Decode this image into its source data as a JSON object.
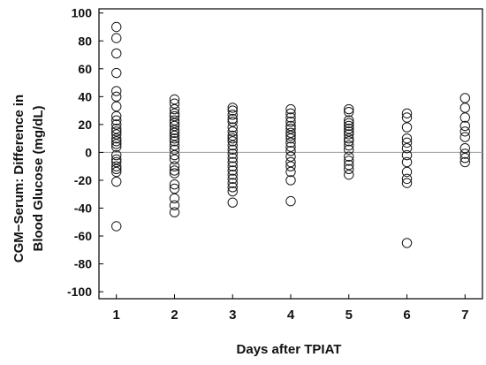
{
  "chart_data": {
    "type": "scatter",
    "xlabel": "Days after TPIAT",
    "ylabel_lines": [
      "CGM−Serum: Difference in",
      "Blood Glucose (mg/dL)"
    ],
    "xlim": [
      0.7,
      7.3
    ],
    "ylim": [
      -105,
      103
    ],
    "x_ticks": [
      1,
      2,
      3,
      4,
      5,
      6,
      7
    ],
    "y_ticks": [
      -100,
      -80,
      -60,
      -40,
      -20,
      0,
      20,
      40,
      60,
      80,
      100
    ],
    "zero_line": true,
    "grid": false,
    "marker": "open-circle",
    "colors": {
      "marker": "#1a1a1a",
      "axis": "#000000",
      "zero_line": "#9a9a9a"
    },
    "points": [
      [
        1,
        90
      ],
      [
        1,
        82
      ],
      [
        1,
        71
      ],
      [
        1,
        57
      ],
      [
        1,
        44
      ],
      [
        1,
        40
      ],
      [
        1,
        33
      ],
      [
        1,
        26
      ],
      [
        1,
        23
      ],
      [
        1,
        20
      ],
      [
        1,
        17
      ],
      [
        1,
        15
      ],
      [
        1,
        13
      ],
      [
        1,
        10
      ],
      [
        1,
        8
      ],
      [
        1,
        6
      ],
      [
        1,
        4
      ],
      [
        1,
        -2
      ],
      [
        1,
        -5
      ],
      [
        1,
        -7
      ],
      [
        1,
        -10
      ],
      [
        1,
        -12
      ],
      [
        1,
        -14
      ],
      [
        1,
        -21
      ],
      [
        1,
        -53
      ],
      [
        2,
        38
      ],
      [
        2,
        35
      ],
      [
        2,
        31
      ],
      [
        2,
        28
      ],
      [
        2,
        26
      ],
      [
        2,
        23
      ],
      [
        2,
        21
      ],
      [
        2,
        19
      ],
      [
        2,
        16
      ],
      [
        2,
        14
      ],
      [
        2,
        12
      ],
      [
        2,
        10
      ],
      [
        2,
        8
      ],
      [
        2,
        5
      ],
      [
        2,
        2
      ],
      [
        2,
        -2
      ],
      [
        2,
        -5
      ],
      [
        2,
        -10
      ],
      [
        2,
        -13
      ],
      [
        2,
        -15
      ],
      [
        2,
        -23
      ],
      [
        2,
        -26
      ],
      [
        2,
        -33
      ],
      [
        2,
        -38
      ],
      [
        2,
        -43
      ],
      [
        3,
        32
      ],
      [
        3,
        30
      ],
      [
        3,
        27
      ],
      [
        3,
        24
      ],
      [
        3,
        22
      ],
      [
        3,
        18
      ],
      [
        3,
        15
      ],
      [
        3,
        12
      ],
      [
        3,
        10
      ],
      [
        3,
        8
      ],
      [
        3,
        5
      ],
      [
        3,
        2
      ],
      [
        3,
        -1
      ],
      [
        3,
        -4
      ],
      [
        3,
        -7
      ],
      [
        3,
        -10
      ],
      [
        3,
        -13
      ],
      [
        3,
        -16
      ],
      [
        3,
        -19
      ],
      [
        3,
        -22
      ],
      [
        3,
        -25
      ],
      [
        3,
        -28
      ],
      [
        3,
        -36
      ],
      [
        4,
        31
      ],
      [
        4,
        28
      ],
      [
        4,
        25
      ],
      [
        4,
        22
      ],
      [
        4,
        19
      ],
      [
        4,
        17
      ],
      [
        4,
        14
      ],
      [
        4,
        12
      ],
      [
        4,
        10
      ],
      [
        4,
        7
      ],
      [
        4,
        4
      ],
      [
        4,
        1
      ],
      [
        4,
        -3
      ],
      [
        4,
        -7
      ],
      [
        4,
        -10
      ],
      [
        4,
        -14
      ],
      [
        4,
        -20
      ],
      [
        4,
        -35
      ],
      [
        5,
        31
      ],
      [
        5,
        29
      ],
      [
        5,
        23
      ],
      [
        5,
        21
      ],
      [
        5,
        19
      ],
      [
        5,
        17
      ],
      [
        5,
        15
      ],
      [
        5,
        13
      ],
      [
        5,
        10
      ],
      [
        5,
        8
      ],
      [
        5,
        5
      ],
      [
        5,
        2
      ],
      [
        5,
        -3
      ],
      [
        5,
        -6
      ],
      [
        5,
        -9
      ],
      [
        5,
        -12
      ],
      [
        5,
        -16
      ],
      [
        6,
        28
      ],
      [
        6,
        25
      ],
      [
        6,
        18
      ],
      [
        6,
        10
      ],
      [
        6,
        7
      ],
      [
        6,
        3
      ],
      [
        6,
        -2
      ],
      [
        6,
        -7
      ],
      [
        6,
        -14
      ],
      [
        6,
        -19
      ],
      [
        6,
        -22
      ],
      [
        6,
        -65
      ],
      [
        7,
        39
      ],
      [
        7,
        32
      ],
      [
        7,
        25
      ],
      [
        7,
        19
      ],
      [
        7,
        15
      ],
      [
        7,
        11
      ],
      [
        7,
        3
      ],
      [
        7,
        -1
      ],
      [
        7,
        -4
      ],
      [
        7,
        -7
      ]
    ]
  }
}
